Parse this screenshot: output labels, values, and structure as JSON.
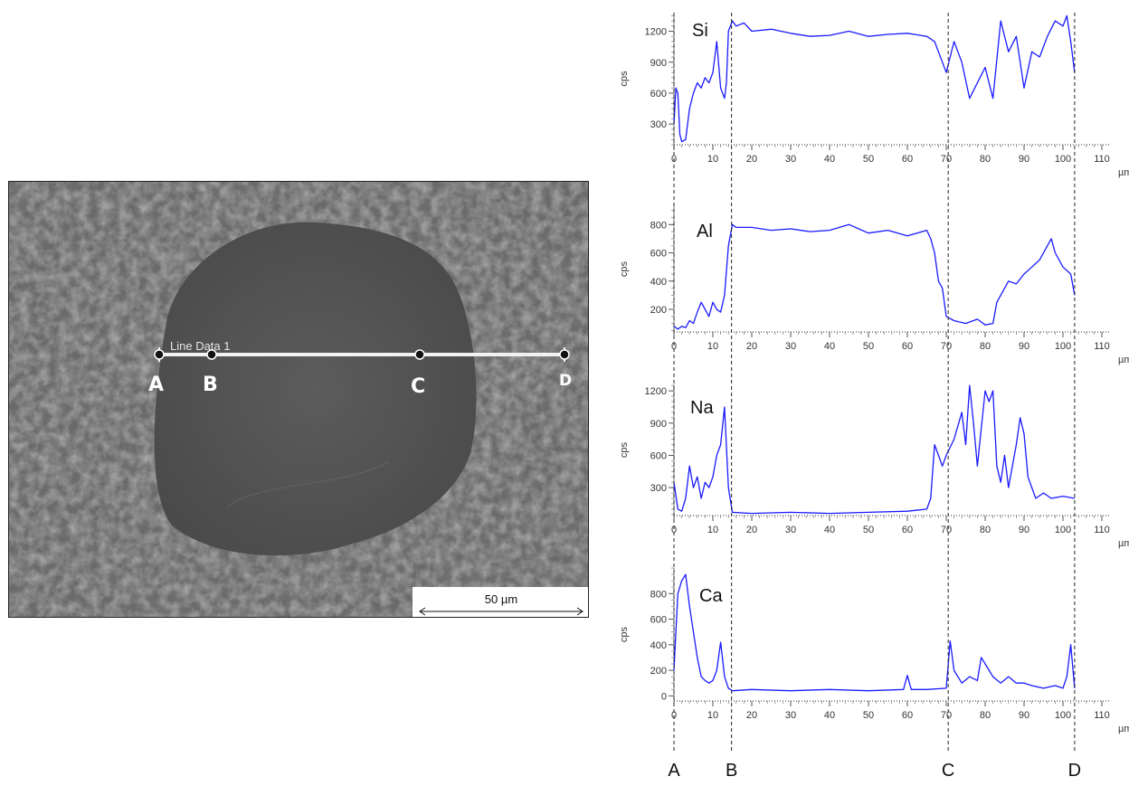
{
  "sem_image": {
    "line_label": "Line Data 1",
    "point_labels": [
      "A",
      "B",
      "C",
      "D"
    ],
    "scale_bar": "50 µm"
  },
  "bottom_markers": [
    "A",
    "B",
    "C",
    "D"
  ],
  "chart_data": [
    {
      "type": "line",
      "element": "Si",
      "ylabel": "cps",
      "xunit": "µm",
      "xlim": [
        0,
        110
      ],
      "yticks": [
        300,
        600,
        900,
        1200
      ],
      "ylim": [
        100,
        1380
      ],
      "xticks": [
        0,
        10,
        20,
        30,
        40,
        50,
        60,
        70,
        80,
        90,
        100,
        110
      ],
      "color": "#1a1aff",
      "x": [
        0,
        0.5,
        1,
        1.5,
        2,
        3,
        4,
        5,
        6,
        7,
        8,
        9,
        10,
        11,
        12,
        13,
        13.5,
        14,
        15,
        16,
        18,
        20,
        25,
        30,
        35,
        40,
        45,
        50,
        55,
        60,
        65,
        67,
        68,
        70,
        72,
        74,
        76,
        78,
        80,
        82,
        84,
        86,
        88,
        90,
        92,
        94,
        96,
        98,
        100,
        101,
        102,
        103
      ],
      "y": [
        300,
        650,
        600,
        200,
        130,
        150,
        450,
        600,
        700,
        650,
        750,
        700,
        800,
        1100,
        650,
        550,
        700,
        1200,
        1300,
        1250,
        1280,
        1200,
        1220,
        1180,
        1150,
        1160,
        1200,
        1150,
        1170,
        1180,
        1150,
        1100,
        1000,
        800,
        1100,
        900,
        550,
        700,
        850,
        550,
        1300,
        1000,
        1150,
        650,
        1000,
        950,
        1150,
        1300,
        1250,
        1350,
        1100,
        800
      ]
    },
    {
      "type": "line",
      "element": "Al",
      "ylabel": "cps",
      "xunit": "µm",
      "xlim": [
        0,
        110
      ],
      "yticks": [
        200,
        400,
        600,
        800
      ],
      "ylim": [
        40,
        930
      ],
      "xticks": [
        0,
        10,
        20,
        30,
        40,
        50,
        60,
        70,
        80,
        90,
        100,
        110
      ],
      "color": "#1a1aff",
      "x": [
        0,
        1,
        2,
        3,
        4,
        5,
        6,
        7,
        8,
        9,
        10,
        11,
        12,
        13,
        14,
        15,
        16,
        20,
        25,
        30,
        35,
        40,
        45,
        50,
        55,
        60,
        65,
        66,
        67,
        68,
        69,
        70,
        72,
        75,
        78,
        80,
        82,
        83,
        84,
        86,
        88,
        90,
        92,
        94,
        96,
        97,
        98,
        100,
        102,
        103
      ],
      "y": [
        80,
        60,
        80,
        70,
        120,
        100,
        180,
        250,
        200,
        150,
        250,
        200,
        180,
        300,
        650,
        800,
        780,
        780,
        760,
        770,
        750,
        760,
        800,
        740,
        760,
        720,
        760,
        700,
        600,
        400,
        350,
        150,
        120,
        100,
        130,
        90,
        100,
        250,
        300,
        400,
        380,
        450,
        500,
        550,
        650,
        700,
        600,
        500,
        450,
        300
      ]
    },
    {
      "type": "line",
      "element": "Na",
      "ylabel": "cps",
      "xunit": "µm",
      "xlim": [
        0,
        110
      ],
      "yticks": [
        300,
        600,
        900,
        1200
      ],
      "ylim": [
        40,
        1260
      ],
      "xticks": [
        0,
        10,
        20,
        30,
        40,
        50,
        60,
        70,
        80,
        90,
        100,
        110
      ],
      "color": "#1a1aff",
      "x": [
        0,
        1,
        2,
        3,
        4,
        5,
        6,
        7,
        8,
        9,
        10,
        11,
        12,
        13,
        14,
        15,
        20,
        30,
        40,
        50,
        60,
        65,
        66,
        67,
        68,
        69,
        70,
        72,
        74,
        75,
        76,
        77,
        78,
        80,
        81,
        82,
        83,
        84,
        85,
        86,
        88,
        89,
        90,
        91,
        92,
        93,
        95,
        97,
        100,
        103
      ],
      "y": [
        350,
        100,
        80,
        200,
        500,
        300,
        400,
        200,
        350,
        300,
        400,
        600,
        700,
        1050,
        300,
        70,
        60,
        70,
        60,
        70,
        80,
        100,
        200,
        700,
        600,
        500,
        600,
        750,
        1000,
        700,
        1250,
        900,
        500,
        1200,
        1100,
        1200,
        500,
        350,
        600,
        300,
        700,
        950,
        800,
        400,
        300,
        200,
        250,
        200,
        220,
        200
      ]
    },
    {
      "type": "line",
      "element": "Ca",
      "ylabel": "cps",
      "xunit": "µm",
      "xlim": [
        0,
        110
      ],
      "yticks": [
        0,
        200,
        400,
        600,
        800
      ],
      "ylim": [
        -40,
        1000
      ],
      "xticks": [
        0,
        10,
        20,
        30,
        40,
        50,
        60,
        70,
        80,
        90,
        100,
        110
      ],
      "color": "#1a1aff",
      "x": [
        0,
        1,
        2,
        3,
        4,
        5,
        6,
        7,
        8,
        9,
        10,
        11,
        12,
        13,
        14,
        15,
        20,
        30,
        40,
        50,
        59,
        60,
        61,
        65,
        70,
        71,
        72,
        74,
        76,
        78,
        79,
        80,
        82,
        84,
        86,
        88,
        90,
        92,
        95,
        98,
        100,
        101,
        102,
        103
      ],
      "y": [
        200,
        800,
        900,
        950,
        700,
        500,
        300,
        150,
        120,
        100,
        120,
        200,
        420,
        150,
        60,
        40,
        50,
        40,
        50,
        40,
        50,
        160,
        50,
        50,
        60,
        430,
        200,
        100,
        150,
        120,
        300,
        250,
        150,
        100,
        150,
        100,
        100,
        80,
        60,
        80,
        60,
        150,
        400,
        60
      ]
    }
  ]
}
